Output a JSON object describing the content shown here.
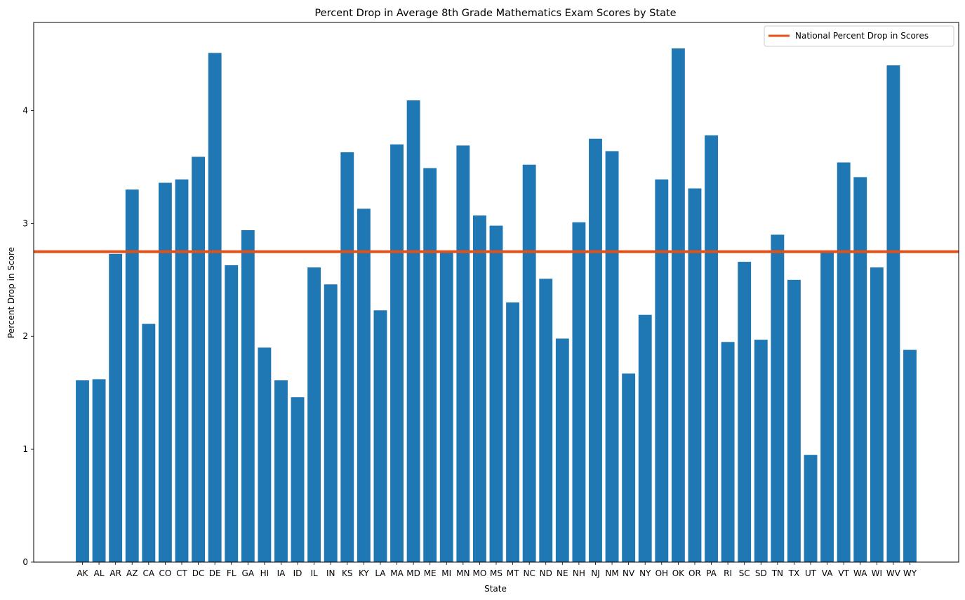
{
  "chart_data": {
    "type": "bar",
    "title": "Percent Drop in Average 8th Grade Mathematics Exam Scores by State",
    "xlabel": "State",
    "ylabel": "Percent Drop in Score",
    "ylim": [
      0,
      4.78
    ],
    "yticks": [
      0,
      1,
      2,
      3,
      4
    ],
    "grid": false,
    "legend_position": "top-right",
    "bar_color": "#1f77b4",
    "categories": [
      "AK",
      "AL",
      "AR",
      "AZ",
      "CA",
      "CO",
      "CT",
      "DC",
      "DE",
      "FL",
      "GA",
      "HI",
      "IA",
      "ID",
      "IL",
      "IN",
      "KS",
      "KY",
      "LA",
      "MA",
      "MD",
      "ME",
      "MI",
      "MN",
      "MO",
      "MS",
      "MT",
      "NC",
      "ND",
      "NE",
      "NH",
      "NJ",
      "NM",
      "NV",
      "NY",
      "OH",
      "OK",
      "OR",
      "PA",
      "RI",
      "SC",
      "SD",
      "TN",
      "TX",
      "UT",
      "VA",
      "VT",
      "WA",
      "WI",
      "WV",
      "WY"
    ],
    "values": [
      1.61,
      1.62,
      2.73,
      3.3,
      2.11,
      3.36,
      3.39,
      3.59,
      4.51,
      2.63,
      2.94,
      1.9,
      1.61,
      1.46,
      2.61,
      2.46,
      3.63,
      3.13,
      2.23,
      3.7,
      4.09,
      3.49,
      2.75,
      3.69,
      3.07,
      2.98,
      2.3,
      3.52,
      2.51,
      1.98,
      3.01,
      3.75,
      3.64,
      1.67,
      2.19,
      3.39,
      4.55,
      3.31,
      3.78,
      1.95,
      2.66,
      1.97,
      2.9,
      2.5,
      0.95,
      2.75,
      3.54,
      3.41,
      2.61,
      4.4,
      1.88
    ],
    "reference_line": {
      "name": "National Percent Drop in Scores",
      "value": 2.75,
      "color": "#e0521a"
    }
  }
}
